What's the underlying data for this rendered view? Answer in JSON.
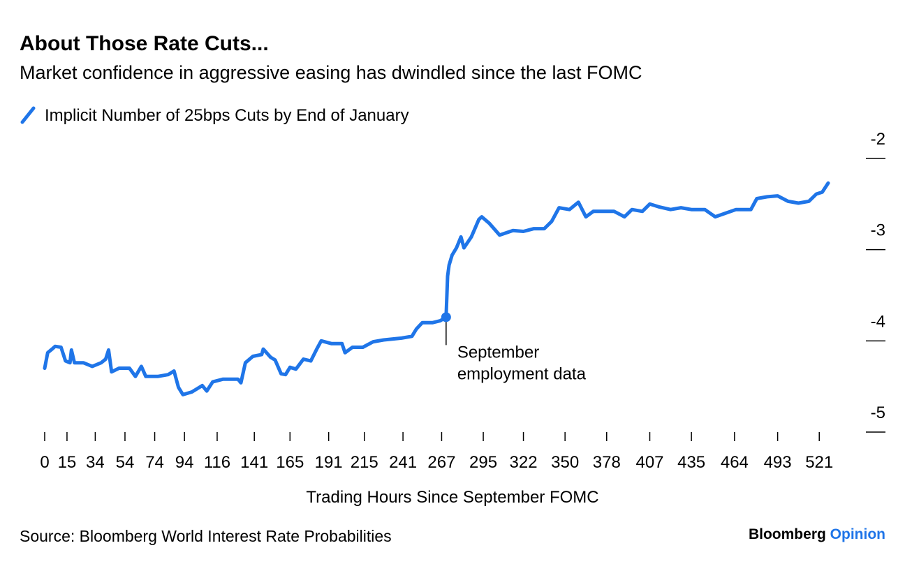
{
  "chart_data": {
    "type": "line",
    "title": "About Those Rate Cuts...",
    "subtitle": "Market confidence in aggressive easing has dwindled since the last FOMC",
    "x_label": "Trading Hours Since September FOMC",
    "source": "Source: Bloomberg World Interest Rate Probabilities",
    "logo": [
      "Bloomberg",
      "Opinion"
    ],
    "xlim": [
      0,
      527
    ],
    "xticks": [
      0,
      15,
      34,
      54,
      74,
      94,
      116,
      141,
      165,
      191,
      215,
      241,
      267,
      295,
      322,
      350,
      378,
      407,
      435,
      464,
      493,
      521
    ],
    "ylim": [
      -5,
      -2
    ],
    "yticks": [
      -2,
      -3,
      -4,
      -5
    ],
    "annotation": {
      "x": 270,
      "y": -3.74,
      "lines": [
        "September",
        "employment data"
      ]
    },
    "series": [
      {
        "name": "Implicit Number of 25bps Cuts by End of January",
        "color": "#1f75e8",
        "x": [
          0,
          2,
          5,
          7,
          11,
          14,
          17,
          18,
          20,
          26,
          32,
          38,
          41,
          43,
          45,
          50,
          57,
          61,
          65,
          68,
          76,
          83,
          87,
          90,
          93,
          99,
          106,
          109,
          113,
          120,
          130,
          132,
          135,
          140,
          146,
          147,
          152,
          155,
          159,
          162,
          165,
          169,
          174,
          179,
          183,
          186,
          193,
          200,
          202,
          207,
          214,
          221,
          228,
          240,
          247,
          250,
          254,
          261,
          266,
          270,
          271,
          272,
          274,
          277,
          280,
          282,
          287,
          292,
          294,
          299,
          306,
          315,
          322,
          329,
          336,
          341,
          346,
          353,
          359,
          364,
          369,
          383,
          390,
          395,
          402,
          407,
          413,
          421,
          428,
          435,
          444,
          451,
          458,
          465,
          475,
          479,
          486,
          493,
          500,
          507,
          514,
          519,
          523,
          527
        ],
        "values": [
          -4.3,
          -4.13,
          -4.09,
          -4.06,
          -4.07,
          -4.22,
          -4.24,
          -4.1,
          -4.24,
          -4.24,
          -4.28,
          -4.24,
          -4.2,
          -4.1,
          -4.34,
          -4.3,
          -4.3,
          -4.39,
          -4.28,
          -4.39,
          -4.39,
          -4.37,
          -4.33,
          -4.51,
          -4.59,
          -4.56,
          -4.49,
          -4.55,
          -4.45,
          -4.42,
          -4.42,
          -4.46,
          -4.24,
          -4.17,
          -4.15,
          -4.09,
          -4.18,
          -4.21,
          -4.36,
          -4.37,
          -4.29,
          -4.31,
          -4.2,
          -4.22,
          -4.09,
          -4.0,
          -4.03,
          -4.03,
          -4.13,
          -4.07,
          -4.07,
          -4.01,
          -3.99,
          -3.97,
          -3.95,
          -3.87,
          -3.8,
          -3.8,
          -3.78,
          -3.74,
          -3.29,
          -3.17,
          -3.06,
          -2.98,
          -2.86,
          -2.98,
          -2.86,
          -2.67,
          -2.64,
          -2.71,
          -2.84,
          -2.79,
          -2.8,
          -2.77,
          -2.77,
          -2.69,
          -2.54,
          -2.56,
          -2.48,
          -2.64,
          -2.58,
          -2.58,
          -2.64,
          -2.56,
          -2.58,
          -2.5,
          -2.53,
          -2.56,
          -2.54,
          -2.56,
          -2.56,
          -2.64,
          -2.6,
          -2.56,
          -2.56,
          -2.44,
          -2.42,
          -2.41,
          -2.47,
          -2.49,
          -2.47,
          -2.39,
          -2.37,
          -2.27
        ]
      }
    ]
  }
}
